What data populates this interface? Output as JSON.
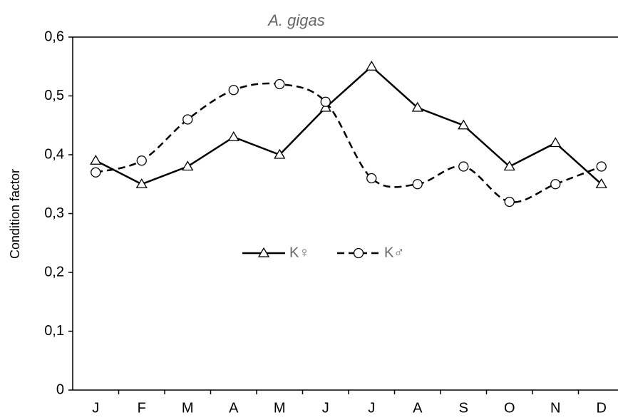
{
  "chart_data": {
    "type": "line",
    "title": "A. gigas",
    "y_label": "Condition factor",
    "categories": [
      "J",
      "F",
      "M",
      "A",
      "M",
      "J",
      "J",
      "A",
      "S",
      "O",
      "N",
      "D"
    ],
    "series": [
      {
        "name": "K♀",
        "color": "#000000",
        "marker": "triangle",
        "dash": false,
        "values": [
          0.39,
          0.35,
          0.38,
          0.43,
          0.4,
          0.48,
          0.55,
          0.48,
          0.45,
          0.38,
          0.42,
          0.35
        ]
      },
      {
        "name": "K♂",
        "color": "#000000",
        "marker": "circle",
        "dash": true,
        "values": [
          0.37,
          0.39,
          0.46,
          0.51,
          0.52,
          0.49,
          0.36,
          0.35,
          0.38,
          0.32,
          0.35,
          0.38
        ]
      }
    ],
    "ylim": [
      0,
      0.6
    ],
    "yticks": [
      0,
      {
        "value": 0.1,
        "label": "0,1"
      },
      {
        "value": 0.2,
        "label": "0,2"
      },
      {
        "value": 0.3,
        "label": "0,3"
      },
      {
        "value": 0.4,
        "label": "0,4"
      },
      {
        "value": 0.5,
        "label": "0,5"
      },
      {
        "value": 0.6,
        "label": "0,6"
      }
    ],
    "grid": false,
    "legend": "center"
  }
}
